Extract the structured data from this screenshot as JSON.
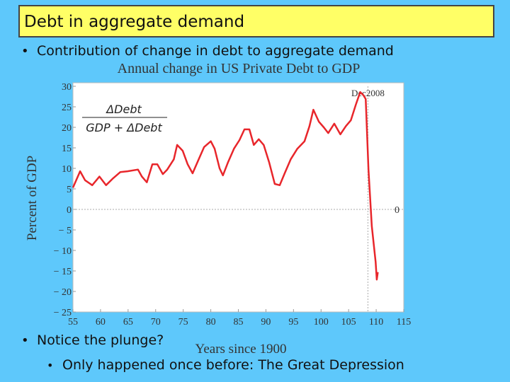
{
  "slide": {
    "title": "Debt in aggregate demand",
    "bullets": [
      "Contribution of change in debt to aggregate demand",
      "Notice the plunge?",
      "Only happened once before: The Great Depression"
    ]
  },
  "chart_data": {
    "type": "line",
    "title": "Annual change in US Private Debt to GDP",
    "x_label": "Years since 1900",
    "y_label": "Percent of GDP",
    "formula": {
      "numerator": "ΔDebt",
      "denominator": "GDP + ΔDebt"
    },
    "xlim": [
      55,
      115
    ],
    "xticks": [
      55,
      60,
      65,
      70,
      75,
      80,
      85,
      90,
      95,
      100,
      105,
      110,
      115
    ],
    "ylim": [
      -25,
      30
    ],
    "yticks": [
      {
        "value": -25,
        "label": "− 25"
      },
      {
        "value": -20,
        "label": "− 20"
      },
      {
        "value": -15,
        "label": "− 15"
      },
      {
        "value": -10,
        "label": "− 10"
      },
      {
        "value": -5,
        "label": "− 5"
      },
      0,
      5,
      10,
      15,
      20,
      25,
      30
    ],
    "hlines": [
      0
    ],
    "vlines": [
      {
        "value": 108.5,
        "label": "Dec2008"
      }
    ],
    "series": [
      {
        "color": "#e8262b",
        "x": [
          55,
          56.3,
          57.2,
          58.5,
          59.8,
          61,
          62.3,
          63.6,
          64.9,
          66.8,
          67.5,
          68.4,
          69.4,
          70.3,
          71.3,
          72.1,
          73.3,
          73.9,
          74.9,
          75.8,
          76.7,
          77.8,
          78.8,
          80,
          80.7,
          81.6,
          82.2,
          83.1,
          84.2,
          85.2,
          86.1,
          87,
          87.8,
          88.7,
          89.6,
          90.6,
          91.6,
          92.5,
          93.4,
          94.5,
          95.7,
          97,
          97.9,
          98.6,
          99.6,
          100.5,
          101.3,
          102.4,
          103.5,
          104.5,
          105.4,
          106.3,
          107.1,
          107.7,
          108.1,
          108.6,
          109.2,
          109.9,
          110.1,
          110.3
        ],
        "values": [
          5.3,
          9.3,
          7.1,
          5.9,
          8,
          5.9,
          7.6,
          9.1,
          9.3,
          9.7,
          8,
          6.6,
          11,
          11,
          8.6,
          9.7,
          12.2,
          15.7,
          14.3,
          11,
          8.8,
          12.2,
          15.2,
          16.6,
          14.8,
          10,
          8.3,
          11.4,
          14.8,
          16.9,
          19.5,
          19.5,
          15.7,
          17.1,
          15.7,
          11.4,
          6.2,
          5.9,
          8.8,
          12.2,
          14.8,
          16.6,
          20.3,
          24.3,
          21.4,
          20,
          18.6,
          20.9,
          18.3,
          20.3,
          21.7,
          25.5,
          28.6,
          27.8,
          26.9,
          9.7,
          -4.1,
          -12.8,
          -17.1,
          -15.3
        ]
      }
    ]
  }
}
